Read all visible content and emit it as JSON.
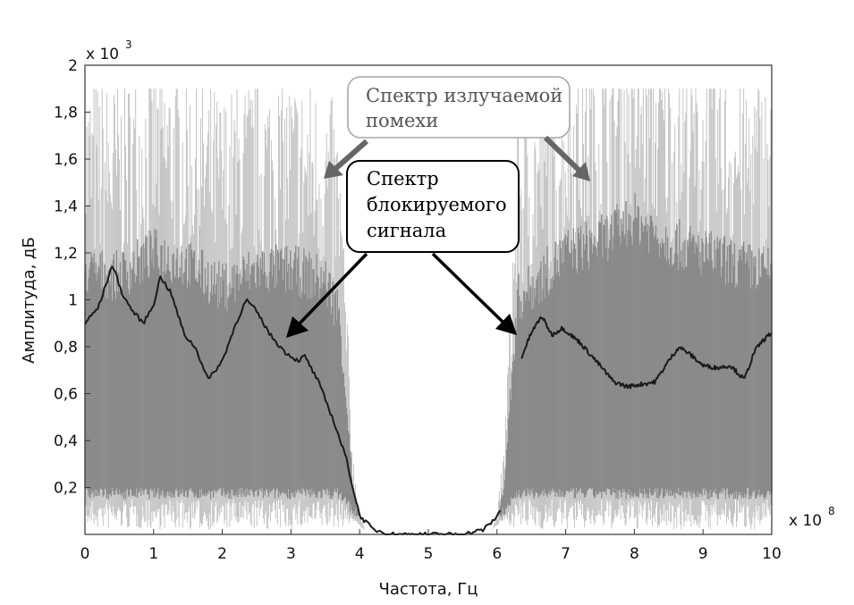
{
  "chart_data": {
    "type": "area",
    "xlabel": "Частота, Гц",
    "ylabel": "Амплитуда, дБ",
    "x_multiplier": "x 10",
    "x_multiplier_exp": "8",
    "y_multiplier": "x 10",
    "y_multiplier_exp": "3",
    "xlim": [
      0,
      10
    ],
    "ylim": [
      0,
      2
    ],
    "x_ticks": [
      {
        "v": 0,
        "label": "0"
      },
      {
        "v": 1,
        "label": "1"
      },
      {
        "v": 2,
        "label": "2"
      },
      {
        "v": 3,
        "label": "3"
      },
      {
        "v": 4,
        "label": "4"
      },
      {
        "v": 5,
        "label": "5"
      },
      {
        "v": 6,
        "label": "6"
      },
      {
        "v": 7,
        "label": "7"
      },
      {
        "v": 8,
        "label": "8"
      },
      {
        "v": 9,
        "label": "9"
      },
      {
        "v": 10,
        "label": "10"
      }
    ],
    "y_ticks": [
      {
        "v": 0.2,
        "label": "0,2"
      },
      {
        "v": 0.4,
        "label": "0,4"
      },
      {
        "v": 0.6,
        "label": "0,6"
      },
      {
        "v": 0.8,
        "label": "0,8"
      },
      {
        "v": 1.0,
        "label": "1"
      },
      {
        "v": 1.2,
        "label": "1,2"
      },
      {
        "v": 1.4,
        "label": "1,4"
      },
      {
        "v": 1.6,
        "label": "1,6"
      },
      {
        "v": 1.8,
        "label": "1,8"
      },
      {
        "v": 2.0,
        "label": "2"
      }
    ],
    "series": [
      {
        "name": "Спектр излучаемой помехи",
        "kind": "noise-band",
        "color": "#8a8a8a",
        "upper": {
          "x": [
            0,
            0.5,
            1,
            1.5,
            2,
            2.5,
            3,
            3.5,
            3.7,
            3.8,
            3.9,
            4.0,
            4.1,
            5.9,
            6.0,
            6.1,
            6.2,
            6.3,
            6.5,
            7,
            7.5,
            8,
            8.5,
            9,
            9.5,
            10
          ],
          "y": [
            1.12,
            1.1,
            1.2,
            1.15,
            1.05,
            1.13,
            1.13,
            1.08,
            0.95,
            0.6,
            0.2,
            0.05,
            0.01,
            0.01,
            0.05,
            0.2,
            0.6,
            1.0,
            1.05,
            1.2,
            1.25,
            1.35,
            1.25,
            1.2,
            1.15,
            1.12
          ]
        },
        "lower": {
          "x": [
            0,
            1,
            2,
            3,
            3.7,
            3.9,
            4.1,
            5.9,
            6.1,
            6.3,
            7,
            8,
            9,
            10
          ],
          "y": [
            0.15,
            0.15,
            0.15,
            0.15,
            0.15,
            0.08,
            0.01,
            0.01,
            0.08,
            0.15,
            0.15,
            0.15,
            0.15,
            0.15
          ]
        },
        "spike_max": 1.9
      },
      {
        "name": "Спектр блокируемого сигнала",
        "kind": "line",
        "color": "#1a1a1a",
        "x": [
          0,
          0.2,
          0.4,
          0.55,
          0.7,
          0.85,
          1.0,
          1.1,
          1.25,
          1.45,
          1.6,
          1.8,
          2.0,
          2.2,
          2.35,
          2.5,
          2.7,
          2.9,
          3.1,
          3.2,
          3.4,
          3.6,
          3.8,
          3.9,
          4.0,
          4.2,
          4.5,
          5.0,
          5.5,
          5.8,
          5.95,
          6.05
        ],
        "y": [
          0.9,
          0.97,
          1.15,
          1.02,
          0.95,
          0.9,
          0.98,
          1.1,
          1.03,
          0.85,
          0.8,
          0.66,
          0.74,
          0.9,
          1.0,
          0.95,
          0.85,
          0.78,
          0.74,
          0.76,
          0.65,
          0.5,
          0.33,
          0.2,
          0.08,
          0.02,
          0.0,
          0.0,
          0.0,
          0.02,
          0.06,
          0.1
        ],
        "x2": [
          6.35,
          6.5,
          6.65,
          6.8,
          6.95,
          7.2,
          7.5,
          7.7,
          7.9,
          8.1,
          8.3,
          8.5,
          8.65,
          8.8,
          9.0,
          9.2,
          9.4,
          9.6,
          9.75,
          9.85,
          10.0
        ],
        "y2": [
          0.75,
          0.86,
          0.93,
          0.85,
          0.88,
          0.82,
          0.72,
          0.65,
          0.63,
          0.64,
          0.65,
          0.74,
          0.8,
          0.77,
          0.72,
          0.71,
          0.72,
          0.66,
          0.78,
          0.82,
          0.86
        ]
      }
    ],
    "annotations": [
      {
        "id": "noise",
        "text_lines": [
          "Спектр излучаемой",
          "помехи"
        ],
        "border_color": "#a8a8a8",
        "text_color": "#555555",
        "arrow_color": "#666666"
      },
      {
        "id": "signal",
        "text_lines": [
          "Спектр",
          "блокируемого",
          "сигнала"
        ],
        "border_color": "#000000",
        "text_color": "#000000",
        "arrow_color": "#000000"
      }
    ]
  }
}
